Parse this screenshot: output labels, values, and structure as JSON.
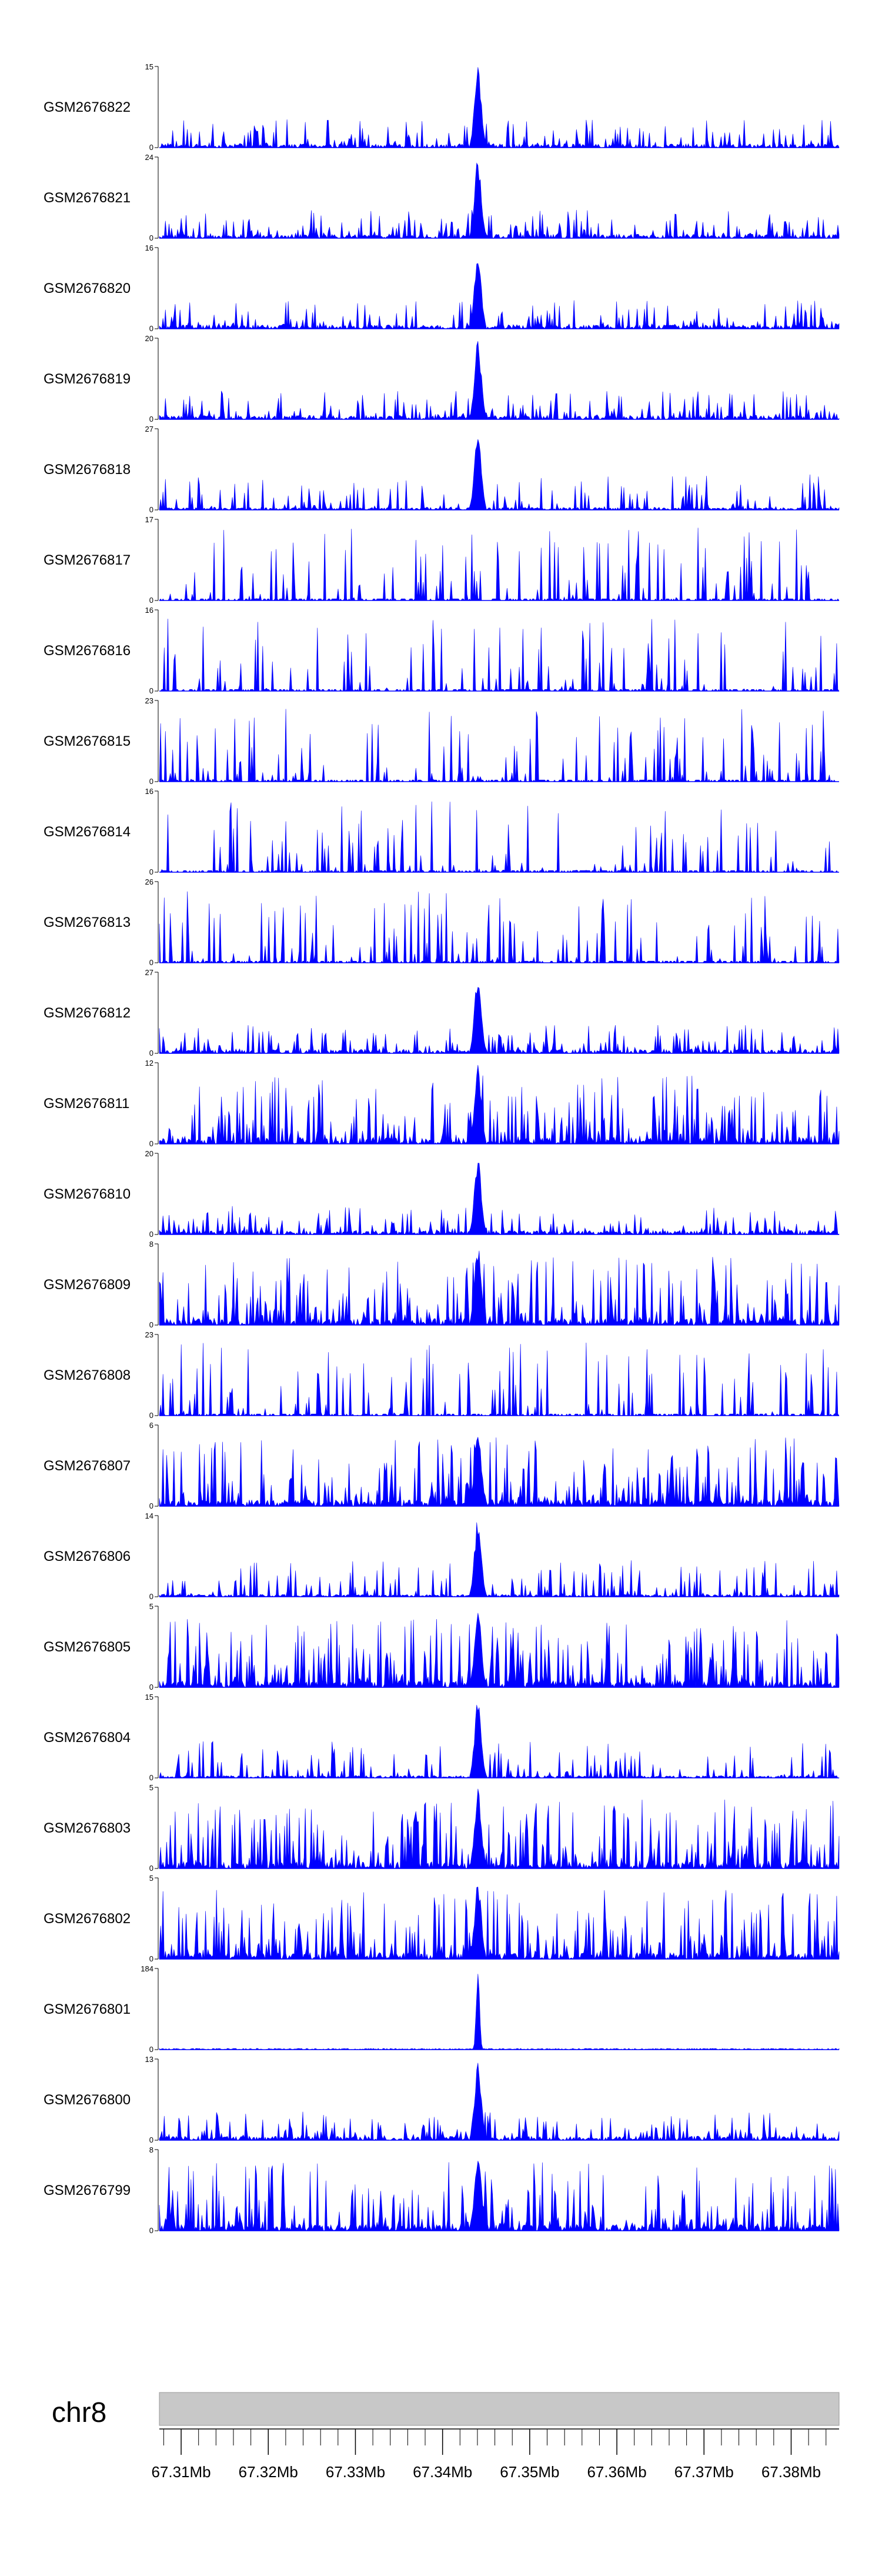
{
  "chart_data": {
    "type": "area",
    "chromosome": "chr8",
    "x_range": [
      67307500,
      67385500
    ],
    "x_ticks": [
      {
        "pos": 67310000,
        "label": "67.31Mb"
      },
      {
        "pos": 67320000,
        "label": "67.32Mb"
      },
      {
        "pos": 67330000,
        "label": "67.33Mb"
      },
      {
        "pos": 67340000,
        "label": "67.34Mb"
      },
      {
        "pos": 67350000,
        "label": "67.35Mb"
      },
      {
        "pos": 67360000,
        "label": "67.36Mb"
      },
      {
        "pos": 67370000,
        "label": "67.37Mb"
      },
      {
        "pos": 67380000,
        "label": "67.38Mb"
      }
    ],
    "tracks": [
      {
        "name": "GSM2676822",
        "ymax": 15,
        "ymin": 0,
        "style": "peaked"
      },
      {
        "name": "GSM2676821",
        "ymax": 24,
        "ymin": 0,
        "style": "peaked"
      },
      {
        "name": "GSM2676820",
        "ymax": 16,
        "ymin": 0,
        "style": "peaked"
      },
      {
        "name": "GSM2676819",
        "ymax": 20,
        "ymin": 0,
        "style": "peaked"
      },
      {
        "name": "GSM2676818",
        "ymax": 27,
        "ymin": 0,
        "style": "peaked-sparse"
      },
      {
        "name": "GSM2676817",
        "ymax": 17,
        "ymin": 0,
        "style": "sparse"
      },
      {
        "name": "GSM2676816",
        "ymax": 16,
        "ymin": 0,
        "style": "sparse"
      },
      {
        "name": "GSM2676815",
        "ymax": 23,
        "ymin": 0,
        "style": "sparse"
      },
      {
        "name": "GSM2676814",
        "ymax": 16,
        "ymin": 0,
        "style": "sparse"
      },
      {
        "name": "GSM2676813",
        "ymax": 26,
        "ymin": 0,
        "style": "sparse"
      },
      {
        "name": "GSM2676812",
        "ymax": 27,
        "ymin": 0,
        "style": "peaked"
      },
      {
        "name": "GSM2676811",
        "ymax": 12,
        "ymin": 0,
        "style": "dense"
      },
      {
        "name": "GSM2676810",
        "ymax": 20,
        "ymin": 0,
        "style": "peaked"
      },
      {
        "name": "GSM2676809",
        "ymax": 8,
        "ymin": 0,
        "style": "dense"
      },
      {
        "name": "GSM2676808",
        "ymax": 23,
        "ymin": 0,
        "style": "sparse"
      },
      {
        "name": "GSM2676807",
        "ymax": 6,
        "ymin": 0,
        "style": "dense"
      },
      {
        "name": "GSM2676806",
        "ymax": 14,
        "ymin": 0,
        "style": "peaked-sparse"
      },
      {
        "name": "GSM2676805",
        "ymax": 5,
        "ymin": 0,
        "style": "dense"
      },
      {
        "name": "GSM2676804",
        "ymax": 15,
        "ymin": 0,
        "style": "peaked-sparse"
      },
      {
        "name": "GSM2676803",
        "ymax": 5,
        "ymin": 0,
        "style": "dense"
      },
      {
        "name": "GSM2676802",
        "ymax": 5,
        "ymin": 0,
        "style": "dense"
      },
      {
        "name": "GSM2676801",
        "ymax": 184,
        "ymin": 0,
        "style": "single"
      },
      {
        "name": "GSM2676800",
        "ymax": 13,
        "ymin": 0,
        "style": "peaked"
      },
      {
        "name": "GSM2676799",
        "ymax": 8,
        "ymin": 0,
        "style": "dense"
      }
    ],
    "series_color": "#0000ff",
    "ideogram_color": "#c8c8c8"
  }
}
